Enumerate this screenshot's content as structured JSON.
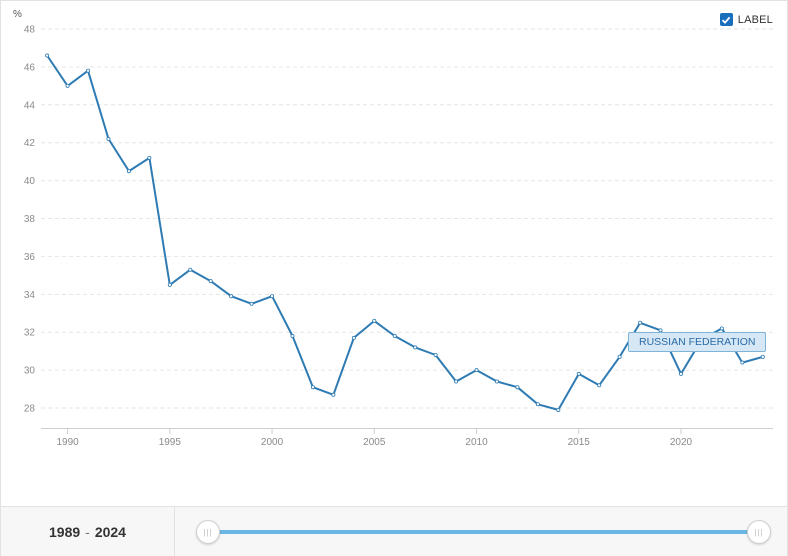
{
  "chart_data": {
    "type": "line",
    "ylabel": "%",
    "ylim": [
      27,
      48
    ],
    "yticks": [
      28,
      30,
      32,
      34,
      36,
      38,
      40,
      42,
      44,
      46,
      48
    ],
    "xlim": [
      1988.7,
      2024.5
    ],
    "xticks": [
      1990,
      1995,
      2000,
      2005,
      2010,
      2015,
      2020
    ],
    "grid": "horizontal-dashed",
    "series": [
      {
        "name": "RUSSIAN FEDERATION",
        "color": "#2e7bb4",
        "x": [
          1989,
          1990,
          1991,
          1992,
          1993,
          1994,
          1995,
          1996,
          1997,
          1998,
          1999,
          2000,
          2001,
          2002,
          2003,
          2004,
          2005,
          2006,
          2007,
          2008,
          2009,
          2010,
          2011,
          2012,
          2013,
          2014,
          2015,
          2016,
          2017,
          2018,
          2019,
          2020,
          2021,
          2022,
          2023,
          2024
        ],
        "values": [
          46.6,
          45.0,
          45.8,
          42.2,
          40.5,
          41.2,
          34.5,
          35.3,
          34.7,
          33.9,
          33.5,
          33.9,
          31.8,
          29.1,
          28.7,
          31.7,
          32.6,
          31.8,
          31.2,
          30.8,
          29.4,
          30.0,
          29.4,
          29.1,
          28.2,
          27.9,
          29.8,
          29.2,
          30.7,
          32.5,
          32.1,
          29.8,
          31.6,
          32.2,
          30.4,
          30.7
        ]
      }
    ]
  },
  "legend_toggle": {
    "label": "LABEL",
    "checked": true
  },
  "series_label": "RUSSIAN FEDERATION",
  "range": {
    "start": "1989",
    "separator": "-",
    "end": "2024"
  }
}
